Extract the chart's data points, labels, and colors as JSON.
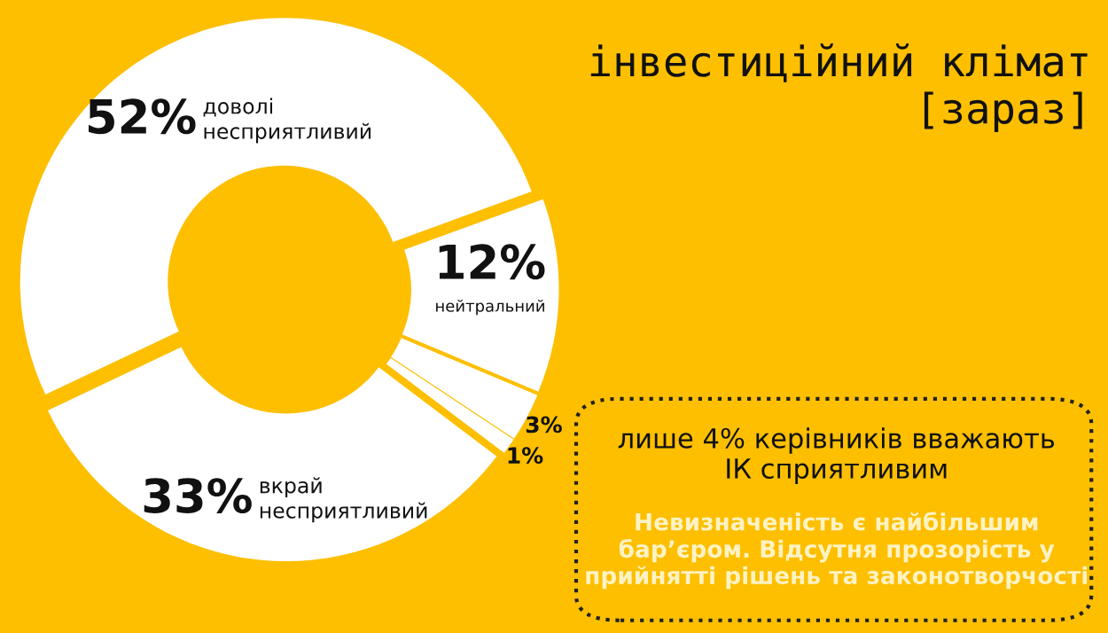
{
  "chart_data": {
    "type": "donut",
    "title": "інвестиційний клімат\n[зараз]",
    "categories": [
      "доволі\nнесприятливий",
      "вкрай\nнесприятливий",
      null,
      null,
      "нейтральний"
    ],
    "values": [
      52,
      33,
      1,
      3,
      12
    ],
    "value_labels": [
      "52%",
      "33%",
      "1%",
      "3%",
      "12%"
    ],
    "colors": [
      "#ffffff",
      "#ffffff",
      "#ffffff",
      "#ffffff",
      "#ffffff"
    ],
    "annotations": [
      "лише 4% керівників вважають\nІК сприятливим",
      "Невизначеність є найбільшим\nбар’єром. Відсутня прозорість у\nприйнятті рішень та законотворчості"
    ]
  }
}
